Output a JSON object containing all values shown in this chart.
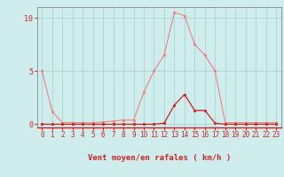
{
  "x": [
    0,
    1,
    2,
    3,
    4,
    5,
    6,
    7,
    8,
    9,
    10,
    11,
    12,
    13,
    14,
    15,
    16,
    17,
    18,
    19,
    20,
    21,
    22,
    23
  ],
  "rafales": [
    5.0,
    1.2,
    0.15,
    0.15,
    0.15,
    0.15,
    0.2,
    0.3,
    0.4,
    0.4,
    3.0,
    5.0,
    6.5,
    10.5,
    10.2,
    7.5,
    6.5,
    5.0,
    0.15,
    0.15,
    0.15,
    0.15,
    0.15,
    0.15
  ],
  "moyen": [
    0,
    0,
    0,
    0,
    0,
    0,
    0,
    0,
    0,
    0,
    0,
    0,
    0.1,
    1.8,
    2.8,
    1.3,
    1.3,
    0.1,
    0,
    0,
    0,
    0,
    0,
    0
  ],
  "rafales_color": "#f08080",
  "moyen_color": "#cc2222",
  "bg_color": "#d0eded",
  "grid_color": "#a8d4d4",
  "axis_color": "#cc2222",
  "xlabel": "Vent moyen/en rafales ( km/h )",
  "yticks": [
    0,
    5,
    10
  ],
  "xticks": [
    0,
    1,
    2,
    3,
    4,
    5,
    6,
    7,
    8,
    9,
    10,
    11,
    12,
    13,
    14,
    15,
    16,
    17,
    18,
    19,
    20,
    21,
    22,
    23
  ],
  "ylim": [
    -0.3,
    11.0
  ],
  "xlim": [
    -0.5,
    23.5
  ],
  "spine_color": "#888888"
}
